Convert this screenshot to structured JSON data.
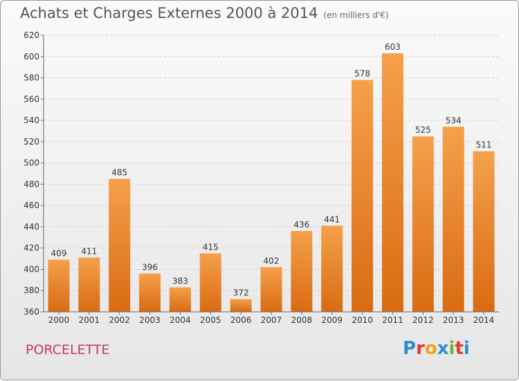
{
  "header": {
    "title": "Achats et Charges Externes 2000 à 2014",
    "subtitle": "(en milliers d'€)"
  },
  "footer": {
    "place": "PORCELETTE",
    "logo": [
      "P",
      "r",
      "o",
      "x",
      "i",
      "t",
      "i"
    ]
  },
  "colors": {
    "bar_top": "#f5a04b",
    "bar_bottom": "#d96b12",
    "logo": [
      "#2a8fd6",
      "#e8372c",
      "#f2a21b",
      "#2a8fd6",
      "#6cb52d",
      "#e8372c",
      "#2a8fd6"
    ]
  },
  "chart_data": {
    "type": "bar",
    "title": "Achats et Charges Externes 2000 à 2014",
    "subtitle": "(en milliers d'€)",
    "categories": [
      "2000",
      "2001",
      "2002",
      "2003",
      "2004",
      "2005",
      "2006",
      "2007",
      "2008",
      "2009",
      "2010",
      "2011",
      "2012",
      "2013",
      "2014"
    ],
    "values": [
      409,
      411,
      485,
      396,
      383,
      415,
      372,
      402,
      436,
      441,
      578,
      603,
      525,
      534,
      511
    ],
    "ylim": [
      360,
      620
    ],
    "yticks": [
      360,
      380,
      400,
      420,
      440,
      460,
      480,
      500,
      520,
      540,
      560,
      580,
      600,
      620
    ],
    "grid": true
  }
}
